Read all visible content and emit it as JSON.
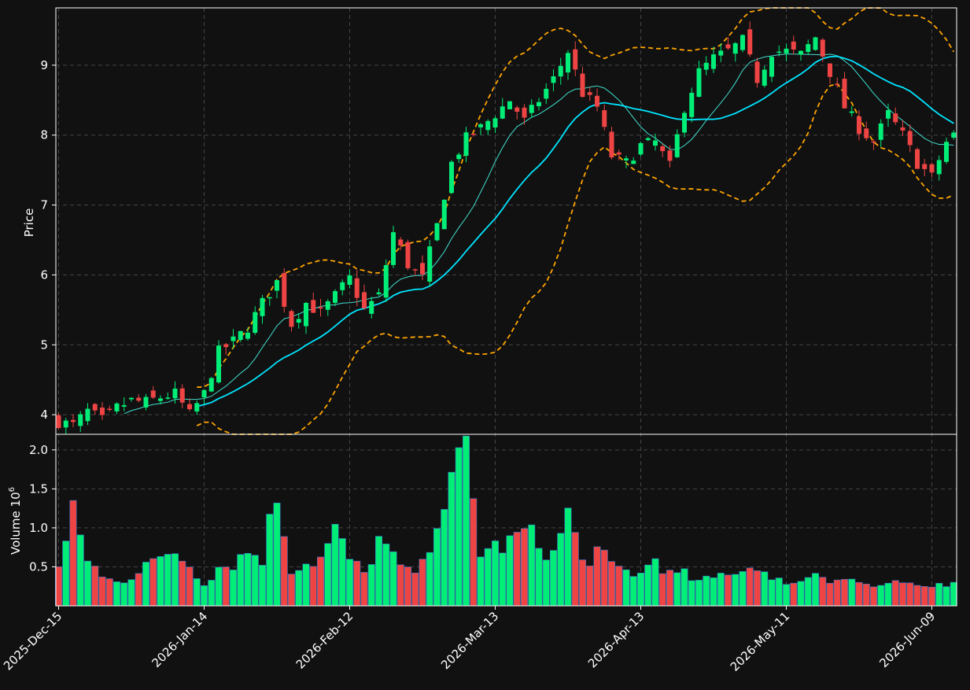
{
  "colors": {
    "background": "#111111",
    "up": "#00ee77",
    "down": "#ee4444",
    "grid": "#444444",
    "axis": "#ffffff",
    "sma_short": "#40e0d0",
    "sma_long": "#00e5ff",
    "bands": "#ffa500"
  },
  "chart_data": {
    "type": "candlestick",
    "grid": true,
    "price_panel": {
      "ylabel": "Price",
      "ylim": [
        3.72,
        9.82
      ],
      "yticks": [
        4,
        5,
        6,
        7,
        8,
        9
      ]
    },
    "volume_panel": {
      "ylabel": "Volume",
      "ylabel_exponent": "10",
      "ylabel_exponent_power": "6",
      "ylim": [
        0,
        2.2
      ],
      "yticks": [
        0.5,
        1.0,
        1.5,
        2.0
      ],
      "ytick_labels": [
        "0.5",
        "1.0",
        "1.5",
        "2.0"
      ]
    },
    "xtick_labels": [
      "2025-Dec-15",
      "2026-Jan-14",
      "2026-Feb-12",
      "2026-Mar-13",
      "2026-Apr-13",
      "2026-May-11",
      "2026-Jun-09"
    ],
    "xtick_indices": [
      0,
      20,
      40,
      60,
      80,
      100,
      120
    ],
    "ohlc_anchors": [
      [
        0,
        3.9
      ],
      [
        2,
        3.85
      ],
      [
        4,
        4.05
      ],
      [
        6,
        3.92
      ],
      [
        8,
        4.1
      ],
      [
        10,
        4.2
      ],
      [
        12,
        4.18
      ],
      [
        14,
        4.25
      ],
      [
        16,
        4.3
      ],
      [
        18,
        4.0
      ],
      [
        20,
        4.3
      ],
      [
        22,
        4.9
      ],
      [
        24,
        5.05
      ],
      [
        26,
        5.25
      ],
      [
        28,
        5.6
      ],
      [
        30,
        5.9
      ],
      [
        32,
        5.3
      ],
      [
        34,
        5.6
      ],
      [
        36,
        5.45
      ],
      [
        38,
        5.7
      ],
      [
        40,
        5.95
      ],
      [
        42,
        5.5
      ],
      [
        44,
        5.7
      ],
      [
        46,
        6.6
      ],
      [
        48,
        6.15
      ],
      [
        50,
        5.95
      ],
      [
        52,
        6.7
      ],
      [
        54,
        7.6
      ],
      [
        56,
        7.95
      ],
      [
        58,
        8.1
      ],
      [
        60,
        8.3
      ],
      [
        62,
        8.5
      ],
      [
        64,
        8.2
      ],
      [
        66,
        8.5
      ],
      [
        68,
        8.8
      ],
      [
        70,
        9.2
      ],
      [
        72,
        8.6
      ],
      [
        74,
        8.4
      ],
      [
        76,
        7.7
      ],
      [
        78,
        7.6
      ],
      [
        80,
        7.85
      ],
      [
        82,
        7.9
      ],
      [
        84,
        7.55
      ],
      [
        86,
        8.4
      ],
      [
        88,
        8.9
      ],
      [
        90,
        9.1
      ],
      [
        92,
        9.2
      ],
      [
        94,
        9.35
      ],
      [
        96,
        8.8
      ],
      [
        98,
        9.2
      ],
      [
        100,
        9.2
      ],
      [
        102,
        9.15
      ],
      [
        104,
        9.4
      ],
      [
        106,
        8.9
      ],
      [
        108,
        8.4
      ],
      [
        110,
        8.1
      ],
      [
        112,
        7.9
      ],
      [
        114,
        8.3
      ],
      [
        116,
        8.0
      ],
      [
        118,
        7.6
      ],
      [
        120,
        7.4
      ],
      [
        122,
        7.9
      ],
      [
        123,
        8.0
      ]
    ],
    "volume_anchors": [
      [
        0,
        0.48
      ],
      [
        2,
        1.15
      ],
      [
        4,
        0.62
      ],
      [
        6,
        0.36
      ],
      [
        8,
        0.3
      ],
      [
        10,
        0.38
      ],
      [
        12,
        0.6
      ],
      [
        14,
        0.55
      ],
      [
        16,
        0.7
      ],
      [
        18,
        0.52
      ],
      [
        20,
        0.3
      ],
      [
        22,
        0.5
      ],
      [
        24,
        0.55
      ],
      [
        26,
        0.7
      ],
      [
        28,
        0.62
      ],
      [
        30,
        1.45
      ],
      [
        32,
        0.48
      ],
      [
        34,
        0.55
      ],
      [
        36,
        0.6
      ],
      [
        38,
        0.95
      ],
      [
        40,
        0.6
      ],
      [
        42,
        0.4
      ],
      [
        44,
        0.85
      ],
      [
        46,
        0.6
      ],
      [
        48,
        0.42
      ],
      [
        50,
        0.5
      ],
      [
        52,
        1.18
      ],
      [
        54,
        1.5
      ],
      [
        56,
        2.0
      ],
      [
        58,
        0.7
      ],
      [
        60,
        0.75
      ],
      [
        62,
        0.8
      ],
      [
        64,
        0.96
      ],
      [
        66,
        0.8
      ],
      [
        68,
        0.65
      ],
      [
        70,
        1.2
      ],
      [
        72,
        0.55
      ],
      [
        74,
        0.7
      ],
      [
        76,
        0.5
      ],
      [
        78,
        0.45
      ],
      [
        80,
        0.4
      ],
      [
        82,
        0.62
      ],
      [
        84,
        0.4
      ],
      [
        86,
        0.4
      ],
      [
        88,
        0.3
      ],
      [
        90,
        0.35
      ],
      [
        92,
        0.45
      ],
      [
        94,
        0.45
      ],
      [
        96,
        0.55
      ],
      [
        98,
        0.3
      ],
      [
        100,
        0.33
      ],
      [
        102,
        0.3
      ],
      [
        104,
        0.45
      ],
      [
        106,
        0.35
      ],
      [
        108,
        0.35
      ],
      [
        110,
        0.3
      ],
      [
        112,
        0.25
      ],
      [
        114,
        0.25
      ],
      [
        116,
        0.3
      ],
      [
        118,
        0.22
      ],
      [
        120,
        0.25
      ],
      [
        122,
        0.3
      ],
      [
        123,
        0.33
      ]
    ],
    "candle_count": 124
  }
}
